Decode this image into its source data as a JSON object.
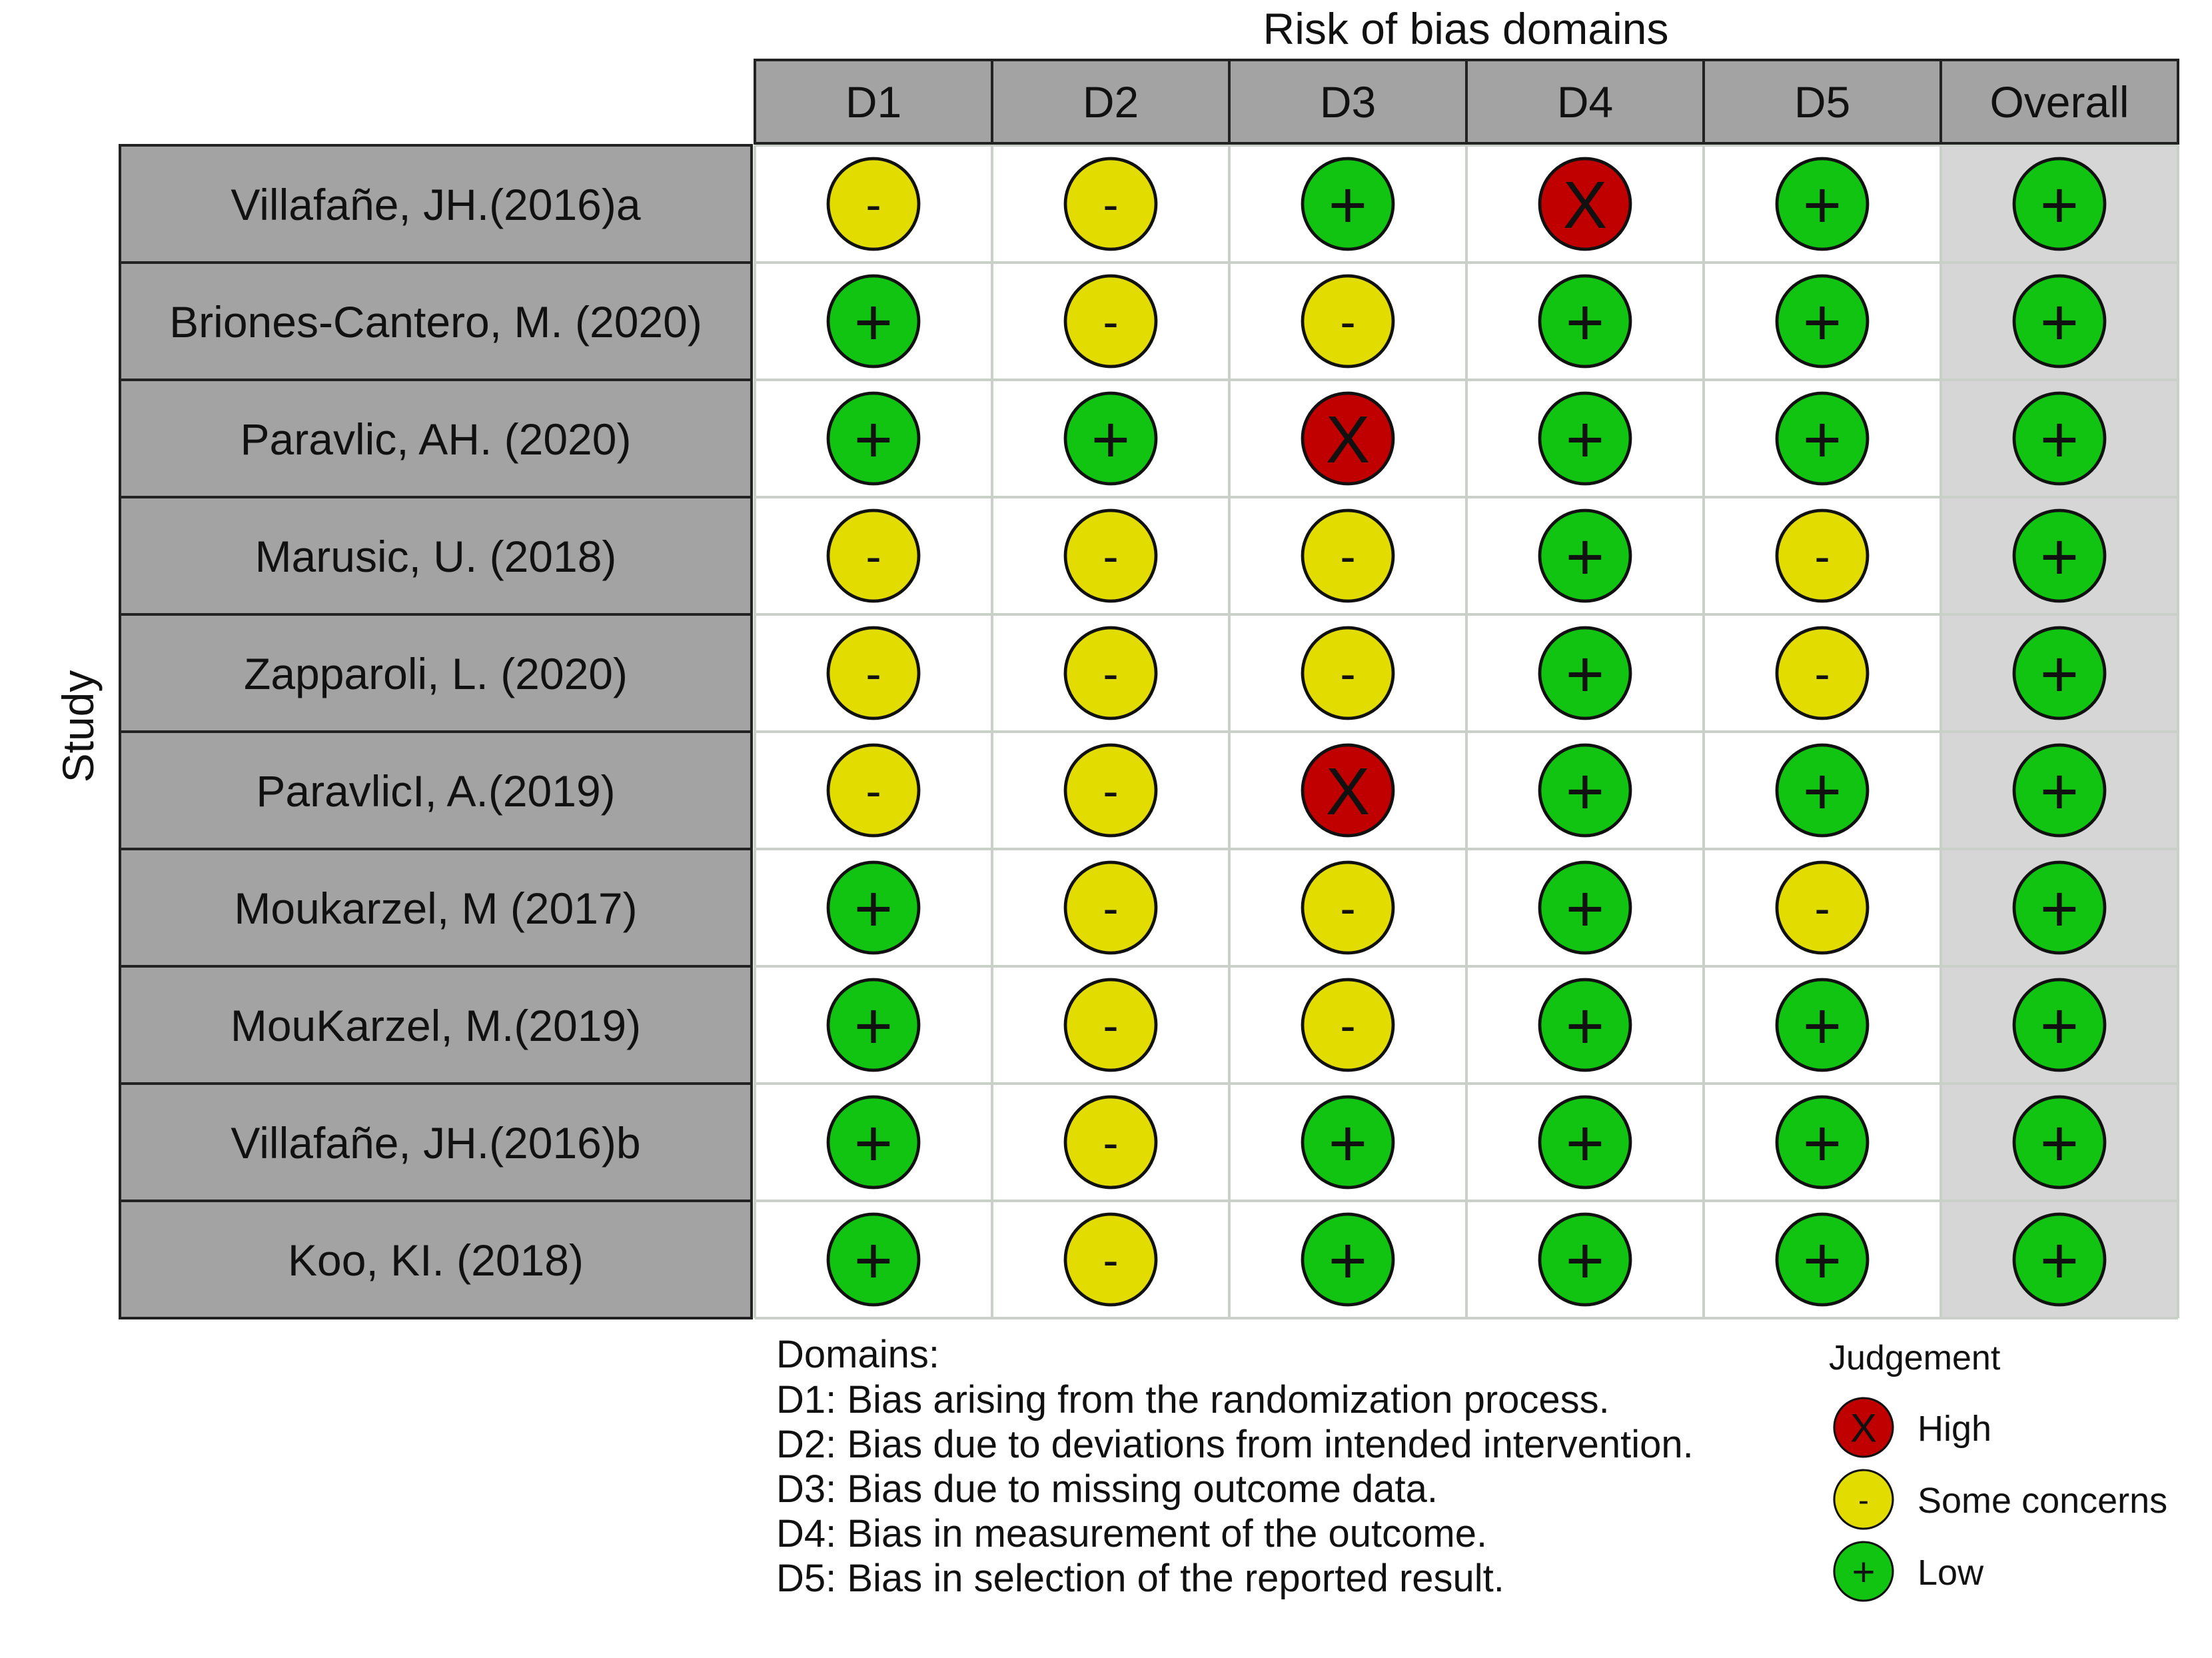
{
  "chart_data": {
    "type": "table",
    "title": "Risk of bias domains",
    "ylabel": "Study",
    "columns": [
      "D1",
      "D2",
      "D3",
      "D4",
      "D5",
      "Overall"
    ],
    "studies": [
      "Villafañe, JH.(2016)a",
      "Briones-Cantero, M. (2020)",
      "Paravlic, AH. (2020)",
      "Marusic, U. (2018)",
      "Zapparoli, L. (2020)",
      "ParavlicI, A.(2019)",
      "Moukarzel, M (2017)",
      "MouKarzel, M.(2019)",
      "Villafañe,  JH.(2016)b",
      "Koo, KI. (2018)"
    ],
    "judgements": [
      [
        "Some concerns",
        "Some concerns",
        "Low",
        "High",
        "Low",
        "Low"
      ],
      [
        "Low",
        "Some concerns",
        "Some concerns",
        "Low",
        "Low",
        "Low"
      ],
      [
        "Low",
        "Low",
        "High",
        "Low",
        "Low",
        "Low"
      ],
      [
        "Some concerns",
        "Some concerns",
        "Some concerns",
        "Low",
        "Some concerns",
        "Low"
      ],
      [
        "Some concerns",
        "Some concerns",
        "Some concerns",
        "Low",
        "Some concerns",
        "Low"
      ],
      [
        "Some concerns",
        "Some concerns",
        "High",
        "Low",
        "Low",
        "Low"
      ],
      [
        "Low",
        "Some concerns",
        "Some concerns",
        "Low",
        "Some concerns",
        "Low"
      ],
      [
        "Low",
        "Some concerns",
        "Some concerns",
        "Low",
        "Low",
        "Low"
      ],
      [
        "Low",
        "Some concerns",
        "Low",
        "Low",
        "Low",
        "Low"
      ],
      [
        "Low",
        "Some concerns",
        "Low",
        "Low",
        "Low",
        "Low"
      ]
    ],
    "domains_title": "Domains:",
    "domains": [
      "D1: Bias arising from the randomization process.",
      "D2: Bias due to deviations from intended intervention.",
      "D3: Bias due to missing outcome data.",
      "D4: Bias in measurement of the outcome.",
      "D5: Bias in selection of the reported result."
    ],
    "legend": {
      "title": "Judgement",
      "items": [
        {
          "label": "High",
          "symbol": "X",
          "color": "#c00000"
        },
        {
          "label": "Some concerns",
          "symbol": "-",
          "color": "#e2dc00"
        },
        {
          "label": "Low",
          "symbol": "+",
          "color": "#12c412"
        }
      ]
    }
  }
}
